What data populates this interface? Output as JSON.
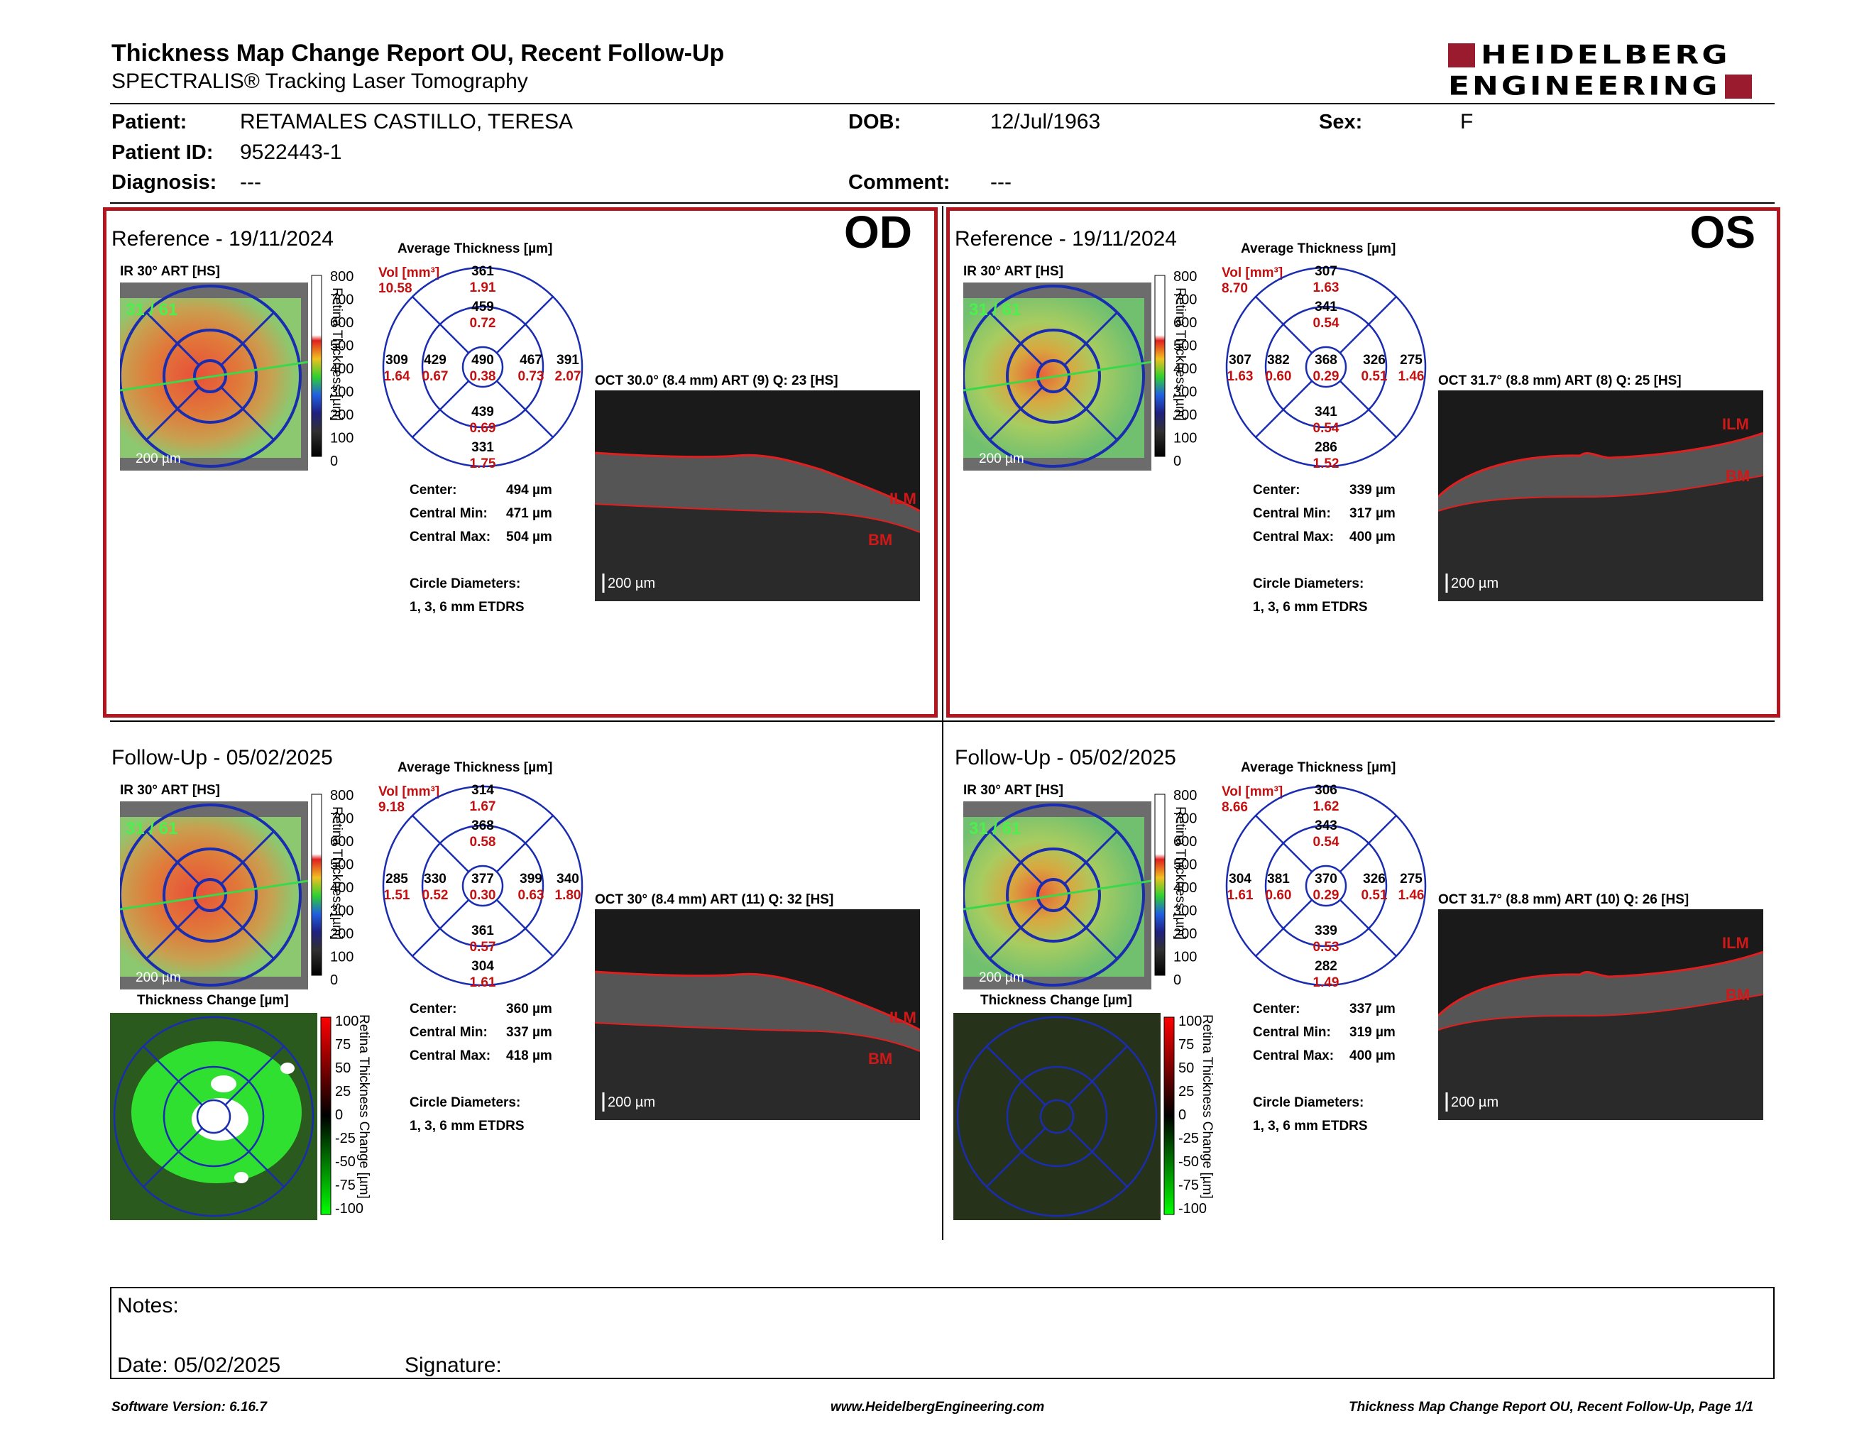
{
  "header": {
    "title": "Thickness Map Change Report OU, Recent Follow-Up",
    "subtitle": "SPECTRALIS® Tracking Laser Tomography",
    "logo_line1": "HEIDELBERG",
    "logo_line2": "ENGINEERING",
    "brand_color": "#9b1b2e"
  },
  "patient": {
    "patient_label": "Patient:",
    "patient_value": "RETAMALES CASTILLO, TERESA",
    "id_label": "Patient ID:",
    "id_value": "9522443-1",
    "diag_label": "Diagnosis:",
    "diag_value": "---",
    "dob_label": "DOB:",
    "dob_value": "12/Jul/1963",
    "comment_label": "Comment:",
    "comment_value": "---",
    "sex_label": "Sex:",
    "sex_value": "F"
  },
  "common": {
    "avg_title": "Average Thickness [µm]",
    "ir_label": "IR 30° ART [HS]",
    "vol_label": "Vol [mm³]",
    "scale_ticks": [
      "800",
      "700",
      "600",
      "500",
      "400",
      "300",
      "200",
      "100",
      "0"
    ],
    "scale_title": "Retina Thickness [µm]",
    "change_title": "Thickness Change [µm]",
    "change_ticks": [
      "100",
      "75",
      "50",
      "25",
      "0",
      "-25",
      "-50",
      "-75",
      "-100"
    ],
    "change_scale_title": "Retina Thickness Change [µm]",
    "scalebar": "200 µm",
    "center_label": "Center:",
    "cmin_label": "Central Min:",
    "cmax_label": "Central Max:",
    "diam_label": "Circle Diameters:",
    "diam_value": "1, 3, 6 mm ETDRS",
    "ilm": "ILM",
    "bm": "BM",
    "ir_overlay": "31 / 61"
  },
  "panels": {
    "od_ref": {
      "title": "Reference - 19/11/2024",
      "eye": "OD",
      "oct_label": "OCT 30.0° (8.4 mm) ART (9) Q: 23 [HS]",
      "vol_total": "10.58",
      "grid": {
        "n_outer": "361",
        "n_outer_v": "1.91",
        "n_inner": "459",
        "n_inner_v": "0.72",
        "t_outer": "309",
        "t_outer_v": "1.64",
        "t_inner": "429",
        "t_inner_v": "0.67",
        "center": "490",
        "center_v": "0.38",
        "n2_inner": "467",
        "n2_inner_v": "0.73",
        "n2_outer": "391",
        "n2_outer_v": "2.07",
        "s_inner": "439",
        "s_inner_v": "0.69",
        "s_outer": "331",
        "s_outer_v": "1.75"
      },
      "center": "494 µm",
      "cmin": "471 µm",
      "cmax": "504 µm"
    },
    "os_ref": {
      "title": "Reference - 19/11/2024",
      "eye": "OS",
      "oct_label": "OCT 31.7° (8.8 mm) ART (8) Q: 25 [HS]",
      "vol_total": "8.70",
      "grid": {
        "n_outer": "307",
        "n_outer_v": "1.63",
        "n_inner": "341",
        "n_inner_v": "0.54",
        "t_outer": "307",
        "t_outer_v": "1.63",
        "t_inner": "382",
        "t_inner_v": "0.60",
        "center": "368",
        "center_v": "0.29",
        "n2_inner": "326",
        "n2_inner_v": "0.51",
        "n2_outer": "275",
        "n2_outer_v": "1.46",
        "s_inner": "341",
        "s_inner_v": "0.54",
        "s_outer": "286",
        "s_outer_v": "1.52"
      },
      "center": "339 µm",
      "cmin": "317 µm",
      "cmax": "400 µm"
    },
    "od_fu": {
      "title": "Follow-Up - 05/02/2025",
      "oct_label": "OCT 30° (8.4 mm) ART (11) Q: 32 [HS]",
      "vol_total": "9.18",
      "grid": {
        "n_outer": "314",
        "n_outer_v": "1.67",
        "n_inner": "368",
        "n_inner_v": "0.58",
        "t_outer": "285",
        "t_outer_v": "1.51",
        "t_inner": "330",
        "t_inner_v": "0.52",
        "center": "377",
        "center_v": "0.30",
        "n2_inner": "399",
        "n2_inner_v": "0.63",
        "n2_outer": "340",
        "n2_outer_v": "1.80",
        "s_inner": "361",
        "s_inner_v": "0.57",
        "s_outer": "304",
        "s_outer_v": "1.61"
      },
      "center": "360 µm",
      "cmin": "337 µm",
      "cmax": "418 µm"
    },
    "os_fu": {
      "title": "Follow-Up - 05/02/2025",
      "oct_label": "OCT 31.7° (8.8 mm) ART (10) Q: 26 [HS]",
      "vol_total": "8.66",
      "grid": {
        "n_outer": "306",
        "n_outer_v": "1.62",
        "n_inner": "343",
        "n_inner_v": "0.54",
        "t_outer": "304",
        "t_outer_v": "1.61",
        "t_inner": "381",
        "t_inner_v": "0.60",
        "center": "370",
        "center_v": "0.29",
        "n2_inner": "326",
        "n2_inner_v": "0.51",
        "n2_outer": "275",
        "n2_outer_v": "1.46",
        "s_inner": "339",
        "s_inner_v": "0.53",
        "s_outer": "282",
        "s_outer_v": "1.49"
      },
      "center": "337 µm",
      "cmin": "319 µm",
      "cmax": "400 µm"
    }
  },
  "notes": {
    "notes_label": "Notes:",
    "date_label": "Date: 05/02/2025",
    "signature_label": "Signature:"
  },
  "footer": {
    "version": "Software Version: 6.16.7",
    "url": "www.HeidelbergEngineering.com",
    "page": "Thickness Map Change Report OU, Recent Follow-Up, Page 1/1"
  }
}
